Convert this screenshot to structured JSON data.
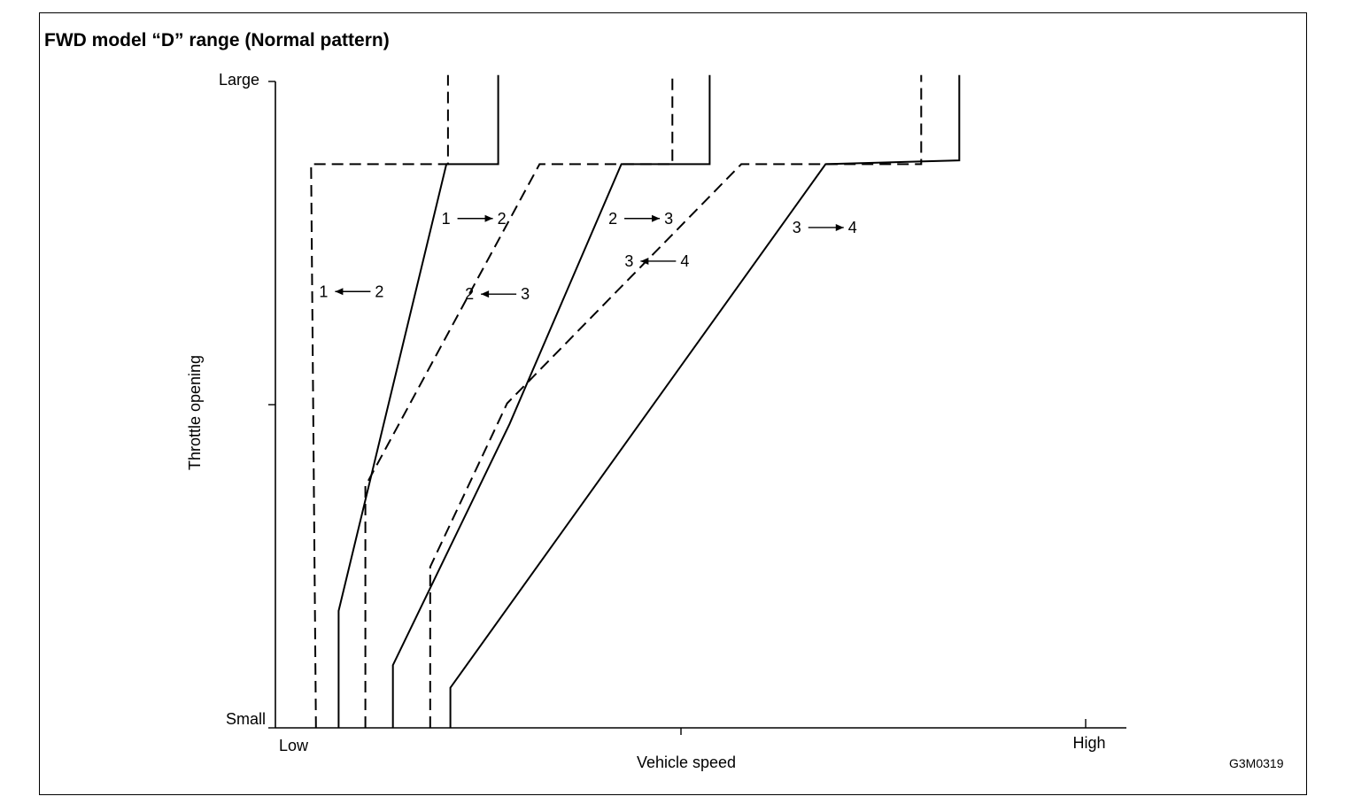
{
  "title": "FWD model “D” range (Normal pattern)",
  "figure_code": "G3M0319",
  "chart_data": {
    "type": "line",
    "title": "FWD model “D” range (Normal pattern)",
    "xlabel": "Vehicle speed",
    "ylabel": "Throttle opening",
    "x_ticks": {
      "low": "Low",
      "high": "High"
    },
    "y_ticks": {
      "small": "Small",
      "large": "Large"
    },
    "xlim": [
      0,
      100
    ],
    "ylim": [
      0,
      100
    ],
    "grid": false,
    "series": [
      {
        "name": "1 ← 2",
        "style": "dashed",
        "label": {
          "from": "1",
          "to": "2",
          "direction": "left",
          "x": 5.4,
          "y": 67.5
        },
        "points": [
          [
            5,
            0
          ],
          [
            4.4,
            87.2
          ],
          [
            21.3,
            87.2
          ],
          [
            21.3,
            101
          ]
        ]
      },
      {
        "name": "1 → 2",
        "style": "solid",
        "label": {
          "from": "1",
          "to": "2",
          "direction": "right",
          "x": 20.5,
          "y": 78.8
        },
        "points": [
          [
            7.8,
            0
          ],
          [
            7.8,
            18.1
          ],
          [
            21.1,
            87.2
          ],
          [
            27.5,
            87.2
          ],
          [
            27.5,
            101
          ]
        ]
      },
      {
        "name": "2 ← 3",
        "style": "dashed",
        "label": {
          "from": "2",
          "to": "3",
          "direction": "left",
          "x": 23.4,
          "y": 67.1
        },
        "points": [
          [
            11.1,
            0
          ],
          [
            11.1,
            37.4
          ],
          [
            32.6,
            87.2
          ],
          [
            49.0,
            87.2
          ],
          [
            49.0,
            101
          ]
        ]
      },
      {
        "name": "2 → 3",
        "style": "solid",
        "label": {
          "from": "2",
          "to": "3",
          "direction": "right",
          "x": 41.1,
          "y": 78.8
        },
        "points": [
          [
            14.5,
            0
          ],
          [
            14.5,
            9.7
          ],
          [
            28.9,
            47.0
          ],
          [
            42.7,
            87.2
          ],
          [
            53.6,
            87.2
          ],
          [
            53.6,
            101
          ]
        ]
      },
      {
        "name": "3 ← 4",
        "style": "dashed",
        "label": {
          "from": "3",
          "to": "4",
          "direction": "left",
          "x": 43.1,
          "y": 72.2
        },
        "points": [
          [
            19.1,
            0
          ],
          [
            19.1,
            24.9
          ],
          [
            28.6,
            50.2
          ],
          [
            57.5,
            87.2
          ],
          [
            79.7,
            87.2
          ],
          [
            79.7,
            101
          ]
        ]
      },
      {
        "name": "3 → 4",
        "style": "solid",
        "label": {
          "from": "3",
          "to": "4",
          "direction": "right",
          "x": 63.8,
          "y": 77.4
        },
        "points": [
          [
            21.6,
            0
          ],
          [
            21.6,
            6.2
          ],
          [
            67.9,
            87.2
          ],
          [
            84.4,
            87.8
          ],
          [
            84.4,
            101
          ]
        ]
      }
    ]
  }
}
